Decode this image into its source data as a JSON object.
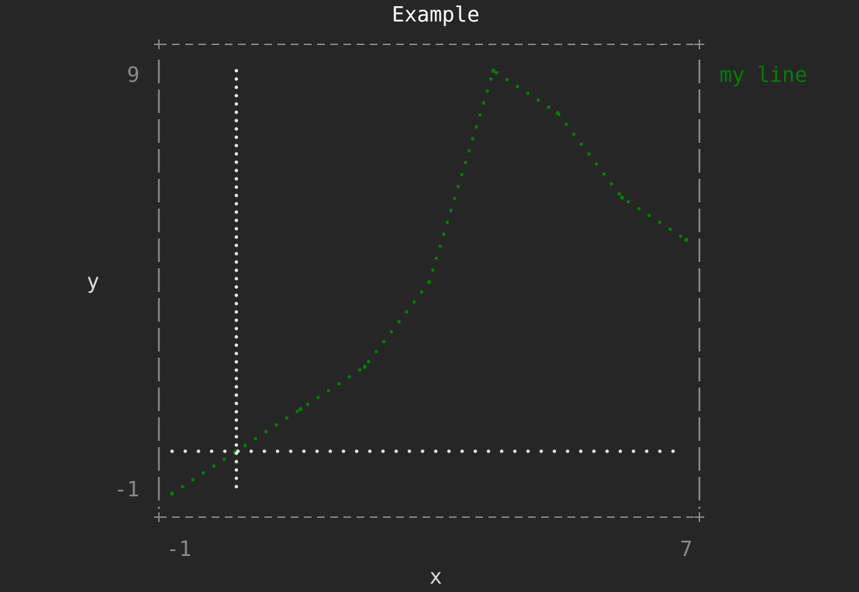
{
  "chart_data": {
    "type": "line",
    "title": "Example",
    "xlabel": "x",
    "ylabel": "y",
    "xlim": [
      -1,
      7
    ],
    "ylim": [
      -1,
      9
    ],
    "x_tick_labels": [
      "-1",
      "7"
    ],
    "y_tick_labels": [
      "9",
      "-1"
    ],
    "legend_position": "top-right",
    "grid": false,
    "axis_lines": {
      "x_zero": true,
      "y_zero": true
    },
    "series": [
      {
        "name": "my line",
        "color": "#008000",
        "x": [
          -1,
          0,
          1,
          2,
          3,
          4,
          5,
          6,
          7
        ],
        "y": [
          -1,
          0,
          1,
          2,
          4,
          9,
          8,
          6,
          5
        ]
      }
    ]
  },
  "colors": {
    "background": "#262626",
    "frame": "#8a8a8a",
    "tick_text": "#8a8a8a",
    "title_text": "#ffffff",
    "axis_text": "#dcdcdc",
    "zero_lines": "#e6e6e6"
  }
}
